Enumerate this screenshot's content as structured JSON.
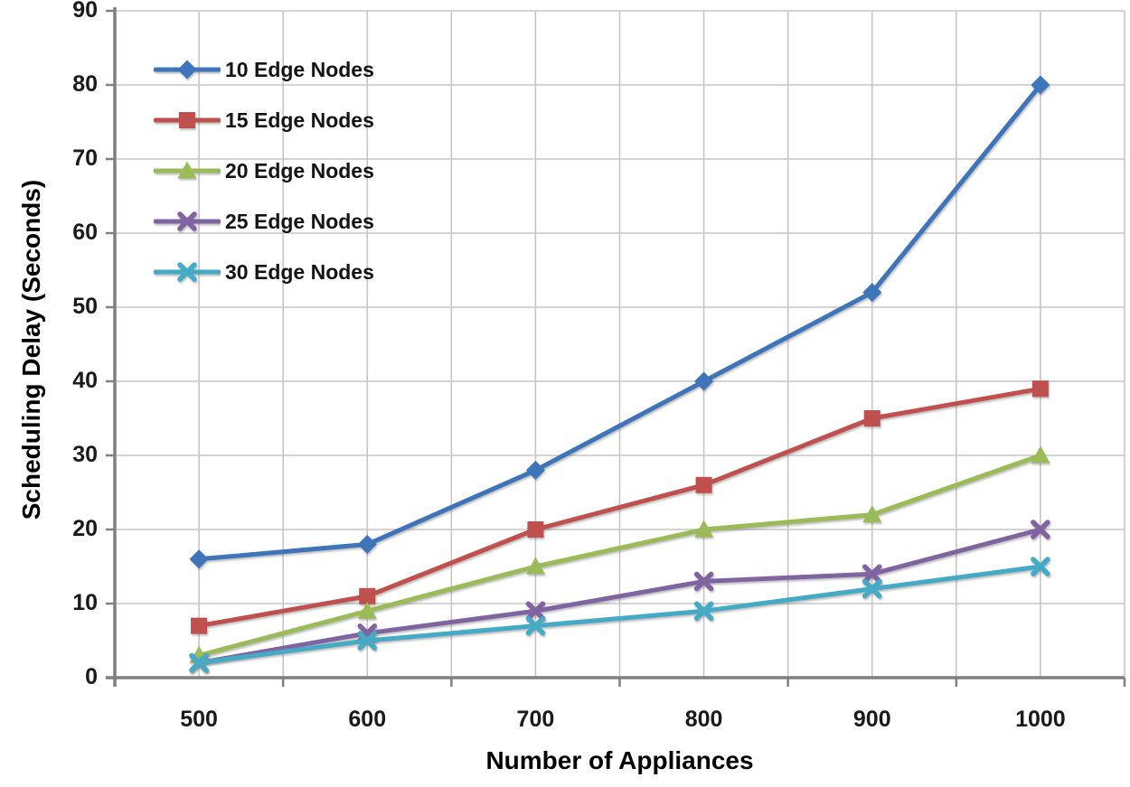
{
  "chart_data": {
    "type": "line",
    "title": "",
    "xlabel": "Number of Appliances",
    "ylabel": "Scheduling Delay (Seconds)",
    "grid": "both",
    "legend_position": "top-left-inside",
    "categories": [
      500,
      600,
      700,
      800,
      900,
      1000
    ],
    "x_axis": {
      "min": 450,
      "max": 1050,
      "gridline_step": 50,
      "tick_step": 100
    },
    "y_axis": {
      "min": 0,
      "max": 90,
      "tick_step": 10,
      "ticks": [
        0,
        10,
        20,
        30,
        40,
        50,
        60,
        70,
        80,
        90
      ]
    },
    "series": [
      {
        "name": "10 Edge Nodes",
        "color": "#3E74B9",
        "marker": "diamond",
        "values": [
          16,
          18,
          28,
          40,
          52,
          80
        ]
      },
      {
        "name": "15 Edge Nodes",
        "color": "#C0504D",
        "marker": "square",
        "values": [
          7,
          11,
          20,
          26,
          35,
          39
        ]
      },
      {
        "name": "20 Edge Nodes",
        "color": "#9BBB59",
        "marker": "triangle",
        "values": [
          3,
          9,
          15,
          20,
          22,
          30
        ]
      },
      {
        "name": "25 Edge Nodes",
        "color": "#8064A2",
        "marker": "x",
        "values": [
          2,
          6,
          9,
          13,
          14,
          20
        ]
      },
      {
        "name": "30 Edge Nodes",
        "color": "#45AAC5",
        "marker": "x",
        "values": [
          2,
          5,
          7,
          9,
          12,
          15
        ]
      }
    ],
    "colors": {
      "gridline": "#C6C6C6",
      "axis": "#7F7F7F",
      "text": "#1a1a1a"
    }
  }
}
